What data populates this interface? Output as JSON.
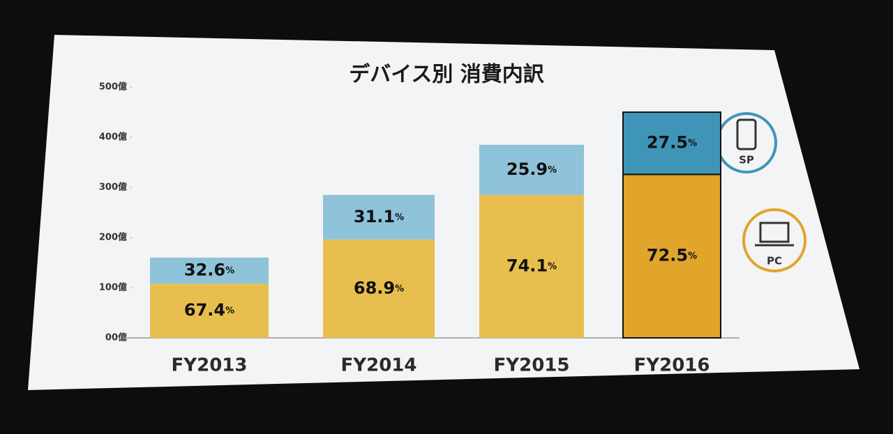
{
  "chart_data": {
    "type": "stacked_bar",
    "title": "デバイス別 消費内訳",
    "categories": [
      "FY2013",
      "FY2014",
      "FY2015",
      "FY2016"
    ],
    "series": [
      {
        "name": "PC",
        "color": "#e8bf4e",
        "colors": [
          "#e8bf4e",
          "#e8bf4e",
          "#e8bf4e",
          "#e0a52a"
        ],
        "values": [
          108,
          196,
          285,
          326
        ],
        "shares": [
          67.4,
          68.9,
          74.1,
          72.5
        ]
      },
      {
        "name": "SP",
        "color": "#8ec3d9",
        "colors": [
          "#8ec3d9",
          "#8ec3d9",
          "#8ec3d9",
          "#3f95b8"
        ],
        "values": [
          52,
          89,
          100,
          124
        ],
        "shares": [
          32.6,
          31.1,
          25.9,
          27.5
        ]
      }
    ],
    "share_unit": "%",
    "ylim": [
      0,
      500
    ],
    "yticks": [
      {
        "value": 0,
        "label": "00億"
      },
      {
        "value": 100,
        "label": "100億"
      },
      {
        "value": 200,
        "label": "200億"
      },
      {
        "value": 300,
        "label": "300億"
      },
      {
        "value": 400,
        "label": "400億"
      },
      {
        "value": 500,
        "label": "500億"
      }
    ]
  }
}
